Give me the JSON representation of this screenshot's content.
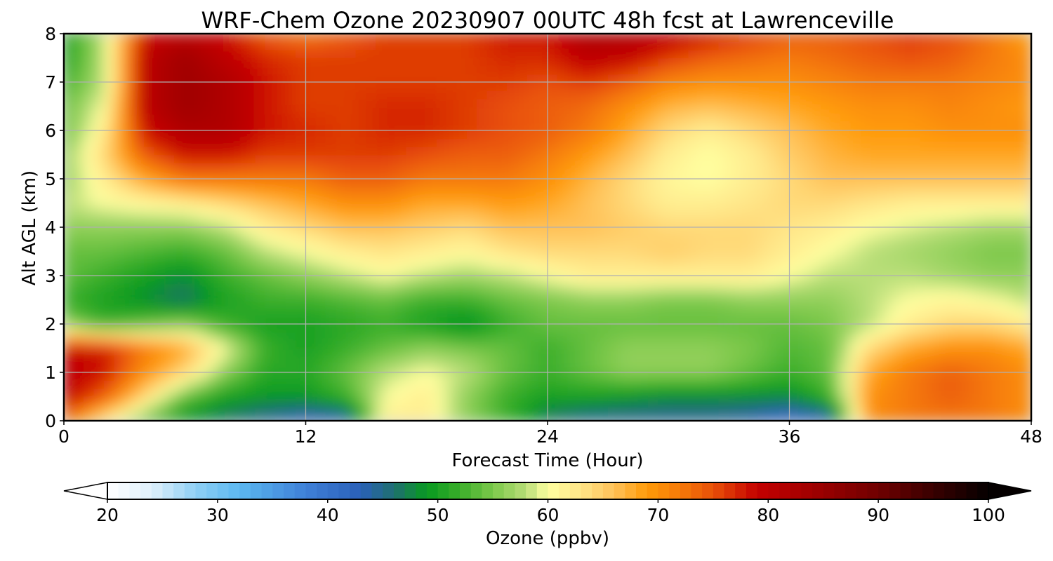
{
  "chart_data": {
    "type": "heatmap",
    "title": "WRF-Chem Ozone  20230907 00UTC 48h fcst at Lawrenceville",
    "xlabel": "Forecast Time (Hour)",
    "ylabel": "Alt AGL (km)",
    "xlim": [
      0,
      48
    ],
    "ylim": [
      0,
      8
    ],
    "x_ticks": [
      0,
      12,
      24,
      36,
      48
    ],
    "y_ticks": [
      0,
      1,
      2,
      3,
      4,
      5,
      6,
      7,
      8
    ],
    "grid": true,
    "x": [
      0,
      2,
      4,
      6,
      8,
      10,
      12,
      14,
      16,
      18,
      20,
      22,
      24,
      26,
      28,
      30,
      32,
      34,
      36,
      38,
      40,
      42,
      44,
      46,
      48
    ],
    "y": [
      0,
      0.5,
      1,
      1.5,
      2,
      2.5,
      3,
      3.5,
      4,
      4.5,
      5,
      5.5,
      6,
      6.5,
      7,
      7.5,
      8
    ],
    "z": [
      [
        72,
        62,
        54,
        48,
        46,
        44,
        42,
        42,
        62,
        62,
        56,
        52,
        46,
        44,
        44,
        44,
        44,
        43,
        40,
        42,
        70,
        72,
        72,
        72,
        70
      ],
      [
        80,
        74,
        64,
        54,
        50,
        49,
        49,
        52,
        60,
        62,
        56,
        52,
        50,
        50,
        49,
        48,
        48,
        48,
        48,
        52,
        70,
        72,
        74,
        72,
        70
      ],
      [
        80,
        78,
        70,
        64,
        56,
        51,
        51,
        54,
        58,
        60,
        58,
        54,
        52,
        54,
        56,
        56,
        56,
        54,
        52,
        54,
        68,
        72,
        74,
        72,
        70
      ],
      [
        79,
        78,
        72,
        68,
        60,
        52,
        50,
        52,
        54,
        56,
        55,
        54,
        52,
        54,
        56,
        56,
        56,
        55,
        53,
        54,
        64,
        68,
        70,
        70,
        68
      ],
      [
        56,
        52,
        54,
        56,
        52,
        50,
        50,
        51,
        52,
        50,
        48,
        52,
        54,
        54,
        54,
        54,
        54,
        54,
        54,
        55,
        58,
        62,
        64,
        64,
        62
      ],
      [
        52,
        50,
        48,
        46,
        50,
        52,
        52,
        53,
        54,
        52,
        52,
        54,
        55,
        56,
        56,
        55,
        55,
        56,
        56,
        56,
        58,
        60,
        61,
        60,
        58
      ],
      [
        54,
        52,
        50,
        48,
        52,
        54,
        56,
        58,
        60,
        58,
        57,
        58,
        60,
        62,
        62,
        62,
        62,
        62,
        60,
        58,
        58,
        58,
        57,
        56,
        56
      ],
      [
        54,
        54,
        53,
        52,
        54,
        58,
        60,
        62,
        63,
        62,
        61,
        63,
        64,
        64,
        64,
        65,
        64,
        64,
        62,
        60,
        58,
        57,
        56,
        55,
        55
      ],
      [
        56,
        56,
        56,
        56,
        58,
        62,
        64,
        66,
        66,
        65,
        64,
        66,
        66,
        66,
        65,
        64,
        64,
        64,
        63,
        62,
        60,
        59,
        58,
        57,
        57
      ],
      [
        58,
        60,
        61,
        62,
        64,
        66,
        68,
        70,
        70,
        68,
        68,
        69,
        68,
        66,
        64,
        62,
        62,
        63,
        64,
        64,
        63,
        62,
        62,
        62,
        62
      ],
      [
        56,
        62,
        68,
        72,
        72,
        72,
        72,
        74,
        74,
        72,
        72,
        72,
        70,
        67,
        64,
        61,
        60,
        62,
        64,
        66,
        66,
        66,
        66,
        66,
        66
      ],
      [
        56,
        64,
        74,
        78,
        78,
        76,
        76,
        76,
        76,
        75,
        74,
        74,
        72,
        69,
        66,
        62,
        60,
        62,
        65,
        67,
        68,
        68,
        68,
        68,
        68
      ],
      [
        54,
        62,
        78,
        82,
        82,
        78,
        77,
        76,
        77,
        77,
        76,
        75,
        74,
        72,
        68,
        64,
        62,
        64,
        66,
        68,
        69,
        69,
        70,
        70,
        70
      ],
      [
        54,
        60,
        80,
        84,
        82,
        78,
        76,
        76,
        77,
        77,
        76,
        75,
        74,
        73,
        70,
        67,
        66,
        67,
        68,
        69,
        70,
        70,
        71,
        70,
        69
      ],
      [
        52,
        58,
        80,
        84,
        82,
        78,
        76,
        76,
        76,
        76,
        76,
        76,
        75,
        76,
        74,
        71,
        70,
        70,
        70,
        71,
        72,
        72,
        72,
        71,
        70
      ],
      [
        50,
        58,
        80,
        84,
        80,
        77,
        76,
        76,
        76,
        76,
        76,
        77,
        77,
        80,
        79,
        76,
        74,
        73,
        72,
        73,
        74,
        75,
        74,
        72,
        70
      ],
      [
        50,
        58,
        78,
        80,
        78,
        74,
        72,
        74,
        76,
        76,
        76,
        78,
        78,
        82,
        82,
        80,
        78,
        76,
        74,
        74,
        75,
        76,
        75,
        72,
        68
      ]
    ],
    "colorbar": {
      "label": "Ozone  (ppbv)",
      "min": 20,
      "max": 100,
      "ticks": [
        20,
        30,
        40,
        50,
        60,
        70,
        80,
        90,
        100
      ],
      "extend": "both",
      "stops": [
        [
          20,
          "#ffffff"
        ],
        [
          24,
          "#dff0fb"
        ],
        [
          28,
          "#8fd0f5"
        ],
        [
          32,
          "#5bb8f0"
        ],
        [
          38,
          "#3f80d8"
        ],
        [
          43,
          "#2a60b8"
        ],
        [
          46,
          "#1f6f70"
        ],
        [
          49,
          "#089a20"
        ],
        [
          52,
          "#3aae2a"
        ],
        [
          55,
          "#7cc84a"
        ],
        [
          58,
          "#b8de78"
        ],
        [
          60,
          "#ffffa0"
        ],
        [
          63,
          "#ffe588"
        ],
        [
          66,
          "#ffc158"
        ],
        [
          69,
          "#ff9a08"
        ],
        [
          72,
          "#f57a08"
        ],
        [
          75,
          "#e85008"
        ],
        [
          79,
          "#c40000"
        ],
        [
          84,
          "#a00000"
        ],
        [
          90,
          "#700000"
        ],
        [
          95,
          "#380000"
        ],
        [
          100,
          "#050000"
        ]
      ]
    }
  }
}
